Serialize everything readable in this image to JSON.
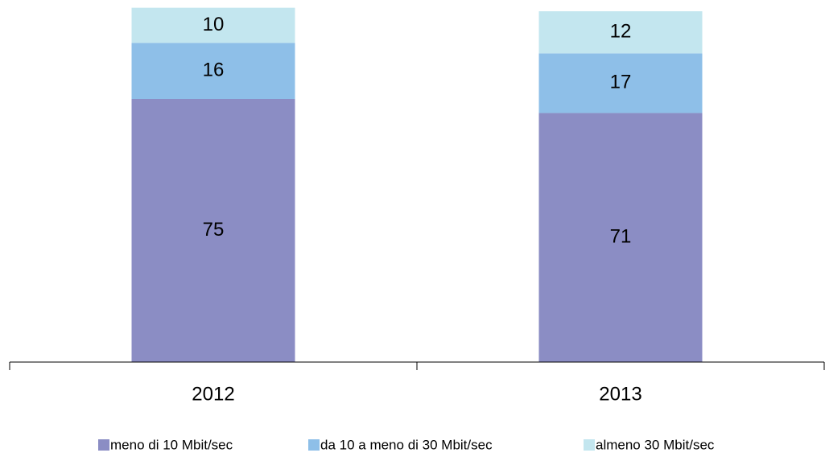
{
  "chart_data": {
    "type": "stacked_bar",
    "categories": [
      "2012",
      "2013"
    ],
    "series": [
      {
        "name": "meno di 10 Mbit/sec",
        "color": "#8b8dc4",
        "values": [
          75,
          71
        ]
      },
      {
        "name": "da 10 a meno di 30 Mbit/sec",
        "color": "#8ebfe8",
        "values": [
          16,
          17
        ]
      },
      {
        "name": "almeno 30 Mbit/sec",
        "color": "#c3e6ef",
        "values": [
          10,
          12
        ]
      }
    ],
    "ylim": [
      0,
      100
    ]
  }
}
